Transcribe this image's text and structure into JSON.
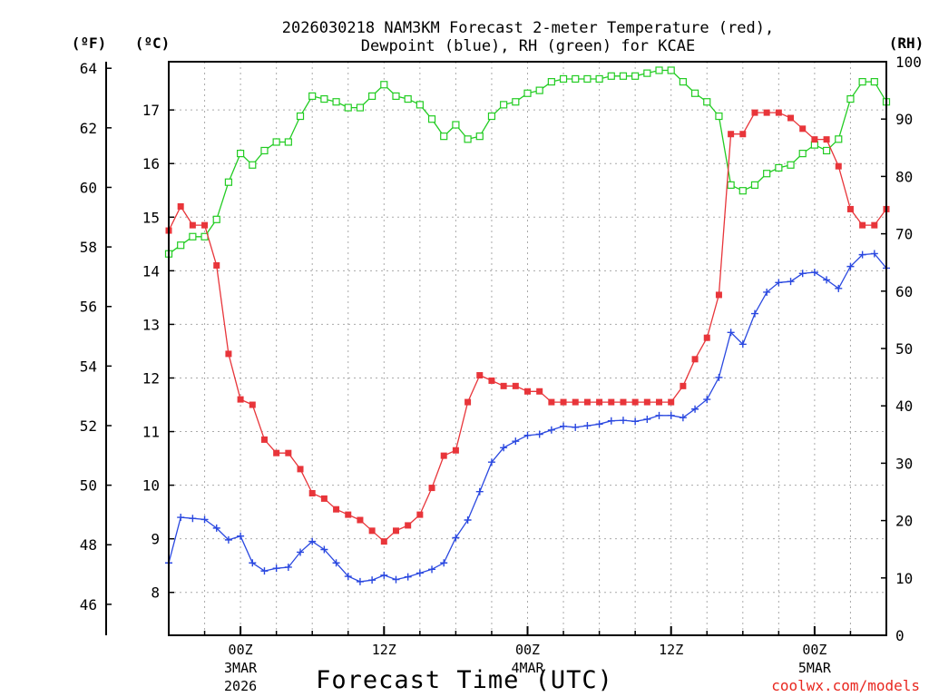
{
  "chart_data": {
    "type": "line",
    "title_line1": "2026030218 NAM3KM Forecast 2-meter Temperature (red),",
    "title_line2": "Dewpoint (blue), RH (green) for KCAE",
    "xlabel": "Forecast Time (UTC)",
    "credit": "coolwx.com/models",
    "unit_f": "(ºF)",
    "unit_c": "(ºC)",
    "unit_rh": "(RH)",
    "x_unit": "forecast hour from 2026-03-02 18Z",
    "xlim": [
      0,
      60
    ],
    "x_ticks": [
      {
        "hour": 6,
        "label": "00Z",
        "sub1": "3MAR",
        "sub2": "2026"
      },
      {
        "hour": 18,
        "label": "12Z",
        "sub1": "",
        "sub2": ""
      },
      {
        "hour": 30,
        "label": "00Z",
        "sub1": "4MAR",
        "sub2": ""
      },
      {
        "hour": 42,
        "label": "12Z",
        "sub1": "",
        "sub2": ""
      },
      {
        "hour": 54,
        "label": "00Z",
        "sub1": "5MAR",
        "sub2": ""
      }
    ],
    "celsius_axis": {
      "ylim": [
        7.2,
        17.9
      ],
      "ticks": [
        "8",
        "9",
        "10",
        "11",
        "12",
        "13",
        "14",
        "15",
        "16",
        "17"
      ]
    },
    "fahrenheit_axis": {
      "ticks": [
        "46",
        "48",
        "50",
        "52",
        "54",
        "56",
        "58",
        "60",
        "62",
        "64"
      ]
    },
    "rh_axis": {
      "ylim": [
        0,
        100
      ],
      "ticks": [
        "0",
        "10",
        "20",
        "30",
        "40",
        "50",
        "60",
        "70",
        "80",
        "90",
        "100"
      ]
    },
    "colors": {
      "temperature": "#e8353a",
      "dewpoint": "#2a48e0",
      "rh": "#22cc22",
      "grid": "#aaaaaa",
      "credit": "#e8271f"
    },
    "series": [
      {
        "name": "Temperature",
        "unit": "C",
        "hours": [
          0,
          1,
          2,
          3,
          4,
          5,
          6,
          7,
          8,
          9,
          10,
          11,
          12,
          13,
          14,
          15,
          16,
          17,
          18,
          19,
          20,
          21,
          22,
          23,
          24,
          25,
          26,
          27,
          28,
          29,
          30,
          31,
          32,
          33,
          34,
          35,
          36,
          37,
          38,
          39,
          40,
          41,
          42,
          43,
          44,
          45,
          46,
          47,
          48,
          49,
          50,
          51,
          52,
          53,
          54,
          55,
          56,
          57,
          58,
          59,
          60
        ],
        "values": [
          14.75,
          15.2,
          14.85,
          14.85,
          14.1,
          12.45,
          11.6,
          11.5,
          10.85,
          10.6,
          10.6,
          10.3,
          9.85,
          9.75,
          9.55,
          9.45,
          9.35,
          9.15,
          8.95,
          9.15,
          9.25,
          9.45,
          9.95,
          10.55,
          10.65,
          11.55,
          12.05,
          11.95,
          11.85,
          11.85,
          11.75,
          11.75,
          11.55,
          11.55,
          11.55,
          11.55,
          11.55,
          11.55,
          11.55,
          11.55,
          11.55,
          11.55,
          11.55,
          11.85,
          12.35,
          12.75,
          13.55,
          16.55,
          16.55,
          16.95,
          16.95,
          16.95,
          16.85,
          16.65,
          16.45,
          16.45,
          15.95,
          15.15,
          14.85,
          14.85,
          15.15
        ]
      },
      {
        "name": "Dewpoint",
        "unit": "C",
        "hours": [
          0,
          1,
          2,
          3,
          4,
          5,
          6,
          7,
          8,
          9,
          10,
          11,
          12,
          13,
          14,
          15,
          16,
          17,
          18,
          19,
          20,
          21,
          22,
          23,
          24,
          25,
          26,
          27,
          28,
          29,
          30,
          31,
          32,
          33,
          34,
          35,
          36,
          37,
          38,
          39,
          40,
          41,
          42,
          43,
          44,
          45,
          46,
          47,
          48,
          49,
          50,
          51,
          52,
          53,
          54,
          55,
          56,
          57,
          58,
          59,
          60
        ],
        "values": [
          8.55,
          9.4,
          9.38,
          9.36,
          9.2,
          8.98,
          9.05,
          8.55,
          8.4,
          8.45,
          8.47,
          8.75,
          8.95,
          8.8,
          8.55,
          8.3,
          8.2,
          8.23,
          8.32,
          8.24,
          8.29,
          8.36,
          8.43,
          8.55,
          9.02,
          9.35,
          9.88,
          10.43,
          10.7,
          10.82,
          10.93,
          10.95,
          11.03,
          11.1,
          11.08,
          11.11,
          11.14,
          11.2,
          11.21,
          11.19,
          11.23,
          11.3,
          11.3,
          11.26,
          11.42,
          11.6,
          12.01,
          12.85,
          12.63,
          13.2,
          13.6,
          13.78,
          13.8,
          13.95,
          13.97,
          13.83,
          13.67,
          14.08,
          14.3,
          14.32,
          14.05
        ]
      },
      {
        "name": "RH",
        "unit": "%",
        "hours": [
          0,
          1,
          2,
          3,
          4,
          5,
          6,
          7,
          8,
          9,
          10,
          11,
          12,
          13,
          14,
          15,
          16,
          17,
          18,
          19,
          20,
          21,
          22,
          23,
          24,
          25,
          26,
          27,
          28,
          29,
          30,
          31,
          32,
          33,
          34,
          35,
          36,
          37,
          38,
          39,
          40,
          41,
          42,
          43,
          44,
          45,
          46,
          47,
          48,
          49,
          50,
          51,
          52,
          53,
          54,
          55,
          56,
          57,
          58,
          59,
          60
        ],
        "values": [
          66.5,
          68,
          69.5,
          69.5,
          72.5,
          79,
          84,
          82,
          84.5,
          86,
          86,
          90.5,
          94,
          93.5,
          93,
          92,
          92,
          94,
          96,
          94,
          93.5,
          92.5,
          90,
          87,
          89,
          86.5,
          87,
          90.5,
          92.5,
          93,
          94.5,
          95,
          96.5,
          97,
          97,
          97,
          97,
          97.5,
          97.5,
          97.5,
          98,
          98.5,
          98.5,
          96.5,
          94.5,
          93,
          90.5,
          78.5,
          77.5,
          78.5,
          80.5,
          81.5,
          82,
          84,
          85.5,
          84.5,
          86.5,
          93.5,
          96.5,
          96.5,
          93
        ]
      }
    ]
  }
}
